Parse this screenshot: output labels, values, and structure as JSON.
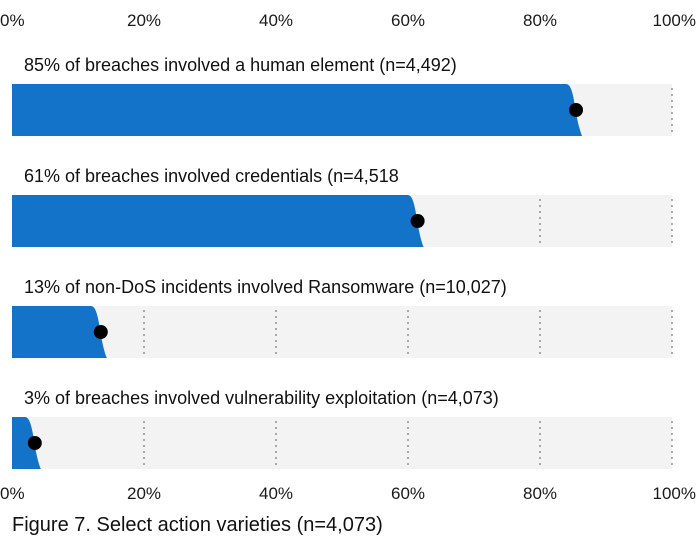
{
  "chart_data": {
    "type": "bar",
    "orientation": "horizontal",
    "caption": "Figure 7. Select action varieties (n=4,073)",
    "xlim": [
      0,
      100
    ],
    "x_ticks": [
      "0%",
      "20%",
      "40%",
      "60%",
      "80%",
      "100%"
    ],
    "grid": true,
    "categories": [
      "85% of breaches involved a human element (n=4,492)",
      "61% of breaches involved credentials (n=4,518",
      "13% of non-DoS incidents involved Ransomware (n=10,027)",
      "3% of breaches involved vulnerability exploitation (n=4,073)"
    ],
    "values": [
      85,
      61,
      13,
      3
    ],
    "colors": {
      "bar": "#1273c9",
      "track": "#f3f3f3",
      "point": "#000000",
      "grid": "#777777"
    }
  }
}
